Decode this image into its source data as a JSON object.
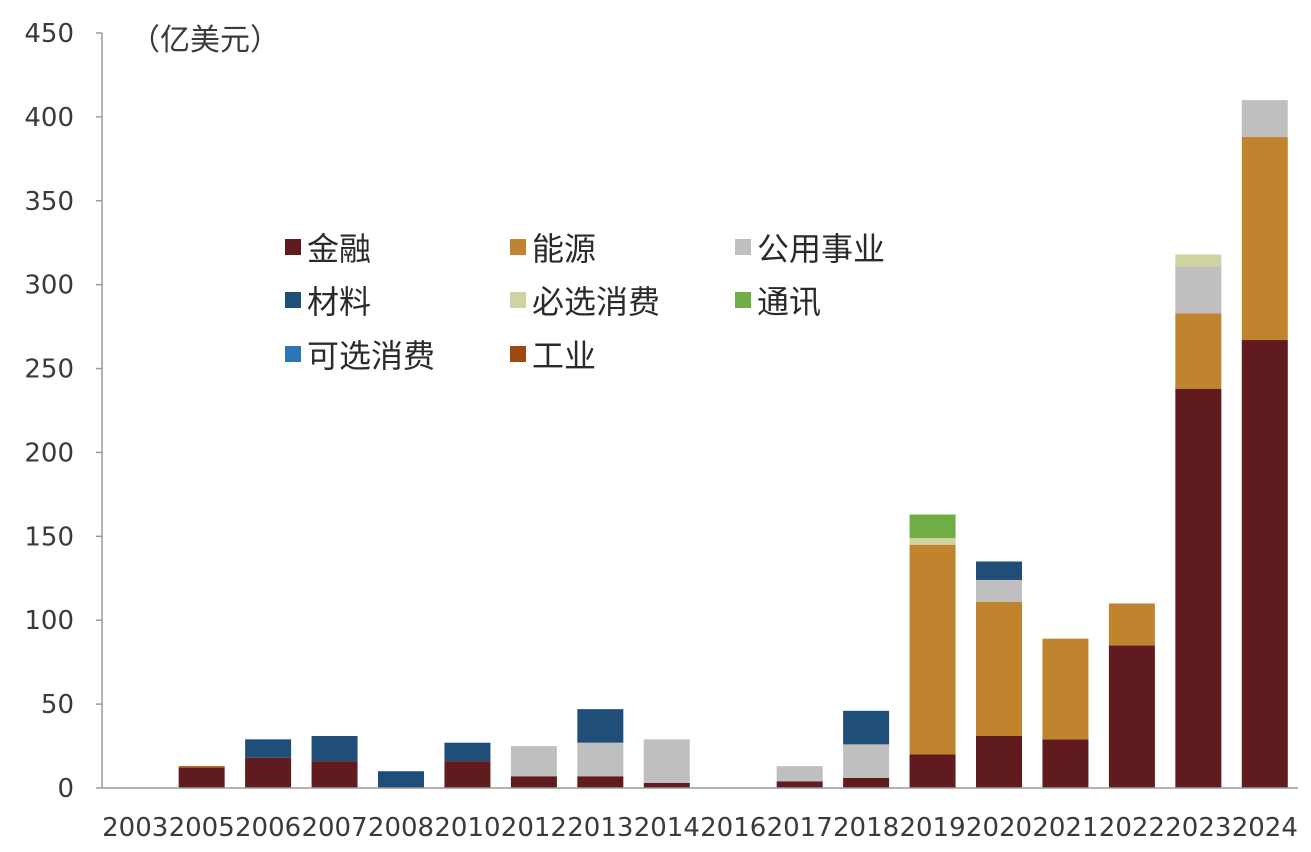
{
  "chart_data": {
    "type": "bar",
    "stacked": true,
    "unit_label": "（亿美元）",
    "ylim": [
      0,
      450
    ],
    "yticks": [
      0,
      50,
      100,
      150,
      200,
      250,
      300,
      350,
      400,
      450
    ],
    "categories": [
      "2003",
      "2005",
      "2006",
      "2007",
      "2008",
      "2010",
      "2012",
      "2013",
      "2014",
      "2016",
      "2017",
      "2018",
      "2019",
      "2020",
      "2021",
      "2022",
      "2023",
      "2024"
    ],
    "series": [
      {
        "name": "金融",
        "color": "#5f1b1e",
        "values": [
          0,
          12,
          18,
          16,
          0,
          16,
          7,
          7,
          3,
          0,
          4,
          6,
          20,
          31,
          29,
          85,
          238,
          267
        ]
      },
      {
        "name": "能源",
        "color": "#c0842e",
        "values": [
          0,
          0,
          0,
          0,
          0,
          0,
          0,
          0,
          0,
          0,
          0,
          0,
          125,
          80,
          60,
          25,
          45,
          121
        ]
      },
      {
        "name": "公用事业",
        "color": "#bfbfbf",
        "values": [
          0,
          0,
          0,
          0,
          0,
          0,
          18,
          20,
          26,
          0,
          9,
          20,
          0,
          13,
          0,
          0,
          28,
          22
        ]
      },
      {
        "name": "材料",
        "color": "#1f4e79",
        "values": [
          0,
          0,
          11,
          15,
          10,
          11,
          0,
          20,
          0,
          0,
          0,
          20,
          0,
          11,
          0,
          0,
          0,
          0
        ]
      },
      {
        "name": "必选消费",
        "color": "#cfd3a0",
        "values": [
          0,
          0,
          0,
          0,
          0,
          0,
          0,
          0,
          0,
          0,
          0,
          0,
          4,
          0,
          0,
          0,
          7,
          0
        ]
      },
      {
        "name": "通讯",
        "color": "#70ad47",
        "values": [
          0,
          0,
          0,
          0,
          0,
          0,
          0,
          0,
          0,
          0,
          0,
          0,
          14,
          0,
          0,
          0,
          0,
          0
        ]
      },
      {
        "name": "可选消费",
        "color": "#2e75b6",
        "values": [
          0,
          0,
          0,
          0,
          0,
          0,
          0,
          0,
          0,
          0,
          0,
          0,
          0,
          0,
          0,
          0,
          0,
          0
        ]
      },
      {
        "name": "工业",
        "color": "#9e480e",
        "values": [
          0,
          1,
          0,
          0,
          0,
          0,
          0,
          0,
          0,
          0,
          0,
          0,
          0,
          0,
          0,
          0,
          0,
          0
        ]
      }
    ],
    "legend_position": "upper-left-inside",
    "grid": false
  }
}
